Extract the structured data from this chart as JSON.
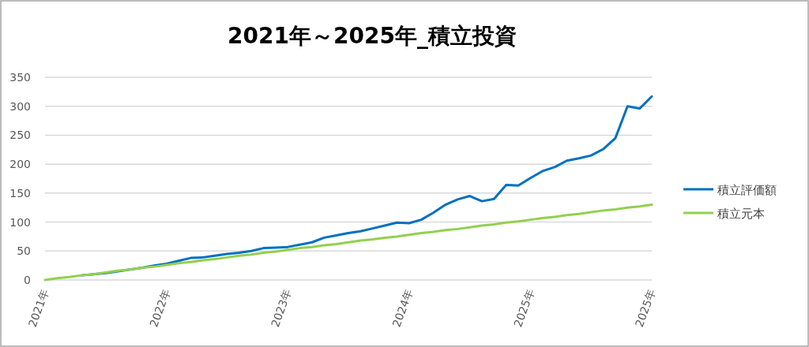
{
  "chart_data": {
    "type": "line",
    "title": "2021年～2025年_積立投資",
    "categories": [
      "2021年",
      null,
      null,
      null,
      null,
      null,
      null,
      null,
      null,
      null,
      "2022年",
      null,
      null,
      null,
      null,
      null,
      null,
      null,
      null,
      null,
      "2023年",
      null,
      null,
      null,
      null,
      null,
      null,
      null,
      null,
      null,
      "2024年",
      null,
      null,
      null,
      null,
      null,
      null,
      null,
      null,
      null,
      "2025年",
      null,
      null,
      null,
      null,
      null,
      null,
      null,
      null,
      null,
      "2025年"
    ],
    "ylim": [
      0,
      350
    ],
    "yticks": [
      0,
      50,
      100,
      150,
      200,
      250,
      300,
      350
    ],
    "grid": "y",
    "legend": "right",
    "marker": "none",
    "line_style": "solid",
    "series": [
      {
        "name": "積立評価額",
        "color": "#0070c0",
        "values": [
          null,
          null,
          null,
          8,
          10,
          12,
          15,
          18,
          21,
          25,
          28,
          33,
          38,
          39,
          42,
          45,
          47,
          50,
          55,
          56,
          57,
          61,
          65,
          73,
          77,
          81,
          84,
          89,
          94,
          99,
          98,
          104,
          116,
          130,
          139,
          145,
          136,
          140,
          164,
          163,
          176,
          188,
          195,
          206,
          210,
          215,
          226,
          245,
          300,
          296,
          317
        ]
      },
      {
        "name": "積立元本",
        "color": "#92d050",
        "values": [
          0,
          3,
          5,
          8,
          10,
          13,
          16,
          18,
          21,
          23,
          26,
          29,
          31,
          34,
          36,
          39,
          42,
          44,
          47,
          49,
          52,
          55,
          57,
          60,
          62,
          65,
          68,
          70,
          73,
          75,
          78,
          81,
          83,
          86,
          88,
          91,
          94,
          96,
          99,
          101,
          104,
          107,
          109,
          112,
          114,
          117,
          120,
          122,
          125,
          127,
          130
        ]
      }
    ]
  }
}
